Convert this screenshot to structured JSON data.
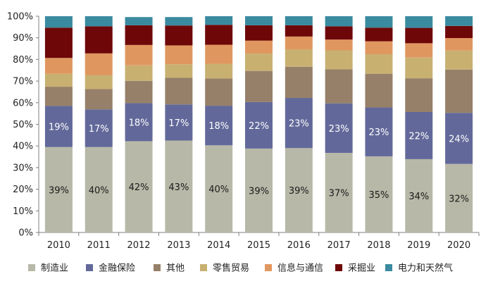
{
  "chart_data": {
    "type": "bar",
    "stacked": true,
    "normalized": true,
    "categories": [
      "2010",
      "2011",
      "2012",
      "2013",
      "2014",
      "2015",
      "2016",
      "2017",
      "2018",
      "2019",
      "2020"
    ],
    "ylim": [
      0,
      100
    ],
    "yticks": [
      "0%",
      "10%",
      "20%",
      "30%",
      "40%",
      "50%",
      "60%",
      "70%",
      "80%",
      "90%",
      "100%"
    ],
    "legend_position": "bottom",
    "series": [
      {
        "name": "制造业",
        "color": "#b8b8a8",
        "values": [
          39.5,
          39.5,
          42.2,
          42.5,
          40.3,
          38.8,
          39.0,
          36.8,
          35.2,
          33.9,
          31.7
        ]
      },
      {
        "name": "金融保险",
        "color": "#62699a",
        "values": [
          19.0,
          17.4,
          17.6,
          16.7,
          18.3,
          21.5,
          23.2,
          22.9,
          22.6,
          21.8,
          23.6
        ]
      },
      {
        "name": "其他",
        "color": "#968069",
        "values": [
          8.9,
          9.4,
          10.3,
          12.3,
          12.6,
          14.4,
          14.4,
          15.7,
          15.6,
          15.6,
          20.0
        ]
      },
      {
        "name": "零售贸易",
        "color": "#c8b071",
        "values": [
          6.0,
          6.5,
          7.2,
          6.3,
          6.8,
          8.0,
          8.1,
          8.8,
          9.0,
          9.7,
          8.8
        ]
      },
      {
        "name": "信息与通信",
        "color": "#e0975f",
        "values": [
          7.3,
          10.0,
          9.4,
          8.7,
          8.8,
          6.0,
          5.9,
          5.0,
          6.0,
          6.5,
          5.8
        ]
      },
      {
        "name": "采掘业",
        "color": "#6e0708",
        "values": [
          14.0,
          12.5,
          9.1,
          9.2,
          9.2,
          7.1,
          5.2,
          6.1,
          6.3,
          7.1,
          5.6
        ]
      },
      {
        "name": "电力和天然气",
        "color": "#3a8aa0",
        "values": [
          5.3,
          4.7,
          3.8,
          3.9,
          4.0,
          4.2,
          4.2,
          4.7,
          5.3,
          5.4,
          4.5
        ]
      }
    ],
    "data_labels": {
      "制造业": [
        "39%",
        "40%",
        "42%",
        "43%",
        "40%",
        "39%",
        "39%",
        "37%",
        "35%",
        "34%",
        "32%"
      ],
      "金融保险": [
        "19%",
        "17%",
        "18%",
        "17%",
        "18%",
        "22%",
        "23%",
        "23%",
        "23%",
        "22%",
        "24%"
      ]
    },
    "title": "",
    "xlabel": "",
    "ylabel": ""
  }
}
